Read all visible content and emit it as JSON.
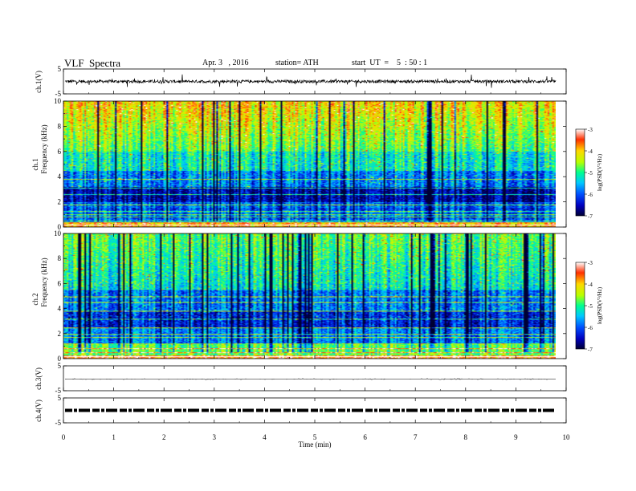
{
  "header": {
    "title": "VLF  Spectra",
    "date": "Apr. 3   , 2016",
    "station": "station= ATH",
    "start": "start  UT  =    5  : 50 : 1"
  },
  "chart_data": [
    {
      "type": "line",
      "ylabel": "ch.1(V)",
      "ylim": [
        -5,
        5
      ],
      "yticks": [
        "5",
        "-5"
      ],
      "baseline": 0,
      "note_amplitude_v": 1
    },
    {
      "type": "heatmap",
      "ylabel": "ch.1\nFrequency  (kHz)",
      "ylim": [
        0,
        10
      ],
      "yticks": [
        "0",
        "2",
        "4",
        "6",
        "8",
        "10"
      ],
      "colorbar": {
        "label": "log(PSD(V²/Hz)",
        "range": [
          -7,
          -3
        ],
        "ticks": [
          "-3",
          "-4",
          "-5",
          "-6",
          "-7"
        ]
      }
    },
    {
      "type": "heatmap",
      "ylabel": "ch.2\nFrequency  (kHz)",
      "ylim": [
        0,
        10
      ],
      "yticks": [
        "0",
        "2",
        "4",
        "6",
        "8",
        "10"
      ],
      "colorbar": {
        "label": "log(PSD(V²/Hz)",
        "range": [
          -7,
          -3
        ],
        "ticks": [
          "-3",
          "-4",
          "-5",
          "-6",
          "-7"
        ]
      }
    },
    {
      "type": "line",
      "ylabel": "ch.3(V)",
      "ylim": [
        -5,
        5
      ],
      "yticks": [
        "5",
        "-5"
      ],
      "baseline": 0
    },
    {
      "type": "line",
      "ylabel": "ch.4(V)",
      "ylim": [
        -5,
        5
      ],
      "yticks": [
        "5",
        "-5"
      ],
      "baseline": 0
    }
  ],
  "xaxis": {
    "label": "Time  (min)",
    "xlim": [
      0,
      10
    ],
    "ticks": [
      "0",
      "1",
      "2",
      "3",
      "4",
      "5",
      "6",
      "7",
      "8",
      "9",
      "10"
    ],
    "data_end_min": 9.8
  },
  "colors": {
    "colormap": [
      "#000033",
      "#0000c0",
      "#0050ff",
      "#00c8ff",
      "#00ff90",
      "#b8ff00",
      "#ffd800",
      "#ff3000",
      "#ffffff"
    ]
  }
}
